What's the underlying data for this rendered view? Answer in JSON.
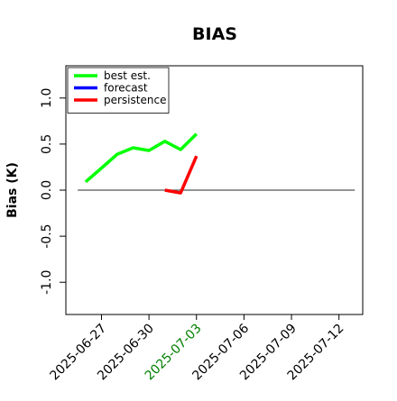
{
  "chart_data": {
    "type": "line",
    "title": "BIAS",
    "xlabel": "",
    "ylabel": "Bias (K)",
    "ylim": [
      -1.35,
      1.35
    ],
    "xlim": [
      "2025-06-24T18:00",
      "2025-07-13T12:00"
    ],
    "yticks": [
      -1.0,
      -0.5,
      0.0,
      0.5,
      1.0
    ],
    "ytick_labels": [
      "-1.0",
      "-0.5",
      "0.0",
      "0.5",
      "1.0"
    ],
    "xticks": [
      "2025-06-27",
      "2025-06-30",
      "2025-07-03",
      "2025-07-06",
      "2025-07-09",
      "2025-07-12"
    ],
    "xtick_labels": [
      "2025-06-27",
      "2025-06-30",
      "2025-07-03",
      "2025-07-06",
      "2025-07-09",
      "2025-07-12"
    ],
    "xtick_colors": [
      "#000000",
      "#000000",
      "#008000",
      "#000000",
      "#000000",
      "#000000"
    ],
    "reference_line": {
      "y": 0.0,
      "x_start": "2025-06-25T12:00",
      "x_end": "2025-07-13T00:00",
      "color": "#555555"
    },
    "legend": {
      "placement": "top-left"
    },
    "grid": false,
    "series": [
      {
        "name": "best est.",
        "color": "#00ff00",
        "x": [
          "2025-06-26",
          "2025-06-27",
          "2025-06-28",
          "2025-06-29",
          "2025-06-30",
          "2025-07-01",
          "2025-07-02",
          "2025-07-03"
        ],
        "y": [
          0.09,
          0.24,
          0.39,
          0.46,
          0.43,
          0.53,
          0.44,
          0.61
        ]
      },
      {
        "name": "forecast",
        "color": "#0000ff",
        "x": [],
        "y": []
      },
      {
        "name": "persistence",
        "color": "#ff0000",
        "x": [
          "2025-07-01",
          "2025-07-02",
          "2025-07-03"
        ],
        "y": [
          0.0,
          -0.03,
          0.37
        ]
      }
    ]
  }
}
